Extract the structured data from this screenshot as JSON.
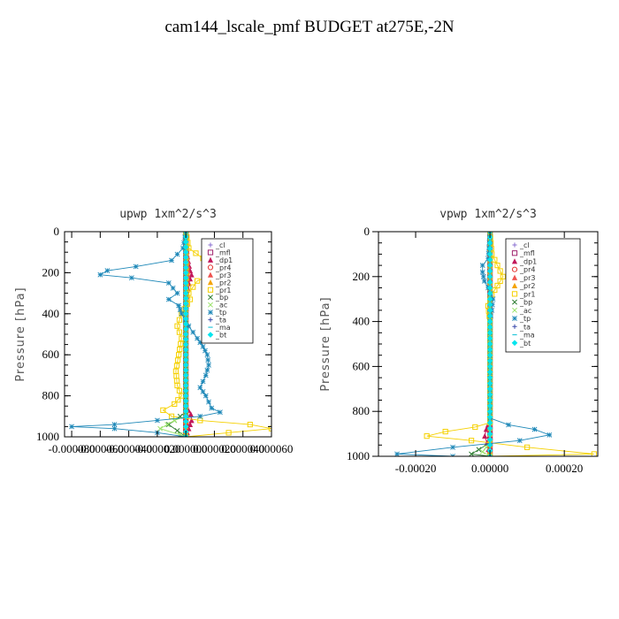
{
  "figure_title": "cam144_lscale_pmf  BUDGET at275E,-2N",
  "chart_data": [
    {
      "type": "line",
      "title": "upwp   1xm^2/s^3",
      "ylabel": "Pressure [hPa]",
      "ylim": [
        1000,
        0
      ],
      "y_ticks": [
        0,
        200,
        400,
        600,
        800,
        1000
      ],
      "xlim": [
        -8.5e-05,
        6e-05
      ],
      "x_ticks": [
        -8e-05,
        -6e-05,
        -4e-05,
        -2e-05,
        0.0,
        2e-05,
        4e-05,
        6e-05
      ],
      "x_tick_labels": [
        "-0.000080",
        "-0.000060",
        "-0.000040",
        "-0.000020",
        "0.000000",
        "0.000020",
        "0.000040",
        "0.000060"
      ],
      "grid": false,
      "legend_position": "top-right",
      "series": [
        {
          "name": "_cl",
          "color": "#8a6fd1",
          "marker": "+",
          "points": [
            [
              0,
              0
            ],
            [
              0,
              1000
            ]
          ]
        },
        {
          "name": "_mfl",
          "color": "#a0246e",
          "marker": "square",
          "points": [
            [
              0,
              0
            ],
            [
              0,
              1000
            ]
          ]
        },
        {
          "name": "_dp1",
          "color": "#c2185b",
          "marker": "triangle",
          "points": [
            [
              0,
              0
            ],
            [
              5e-07,
              100
            ],
            [
              3e-06,
              190
            ],
            [
              4e-06,
              210
            ],
            [
              3e-06,
              230
            ],
            [
              5e-07,
              300
            ],
            [
              0,
              500
            ],
            [
              0,
              850
            ],
            [
              3.5e-06,
              890
            ],
            [
              4e-06,
              920
            ],
            [
              2e-06,
              960
            ],
            [
              0,
              1000
            ]
          ]
        },
        {
          "name": "_pr4",
          "color": "#e53935",
          "marker": "circle",
          "points": [
            [
              0,
              0
            ],
            [
              1e-06,
              200
            ],
            [
              0,
              400
            ],
            [
              0,
              1000
            ]
          ]
        },
        {
          "name": "_pr3",
          "color": "#ef5350",
          "marker": "triangle",
          "points": [
            [
              0,
              0
            ],
            [
              1.5e-06,
              190
            ],
            [
              1e-06,
              230
            ],
            [
              0,
              300
            ],
            [
              0,
              1000
            ]
          ]
        },
        {
          "name": "_pr2",
          "color": "#f4a300",
          "marker": "triangle",
          "points": [
            [
              0,
              0
            ],
            [
              1e-06,
              200
            ],
            [
              0,
              400
            ],
            [
              0,
              1000
            ]
          ]
        },
        {
          "name": "_pr1",
          "color": "#f5d000",
          "marker": "square",
          "points": [
            [
              0,
              0
            ],
            [
              2e-06,
              80
            ],
            [
              1.2e-05,
              130
            ],
            [
              2e-05,
              190
            ],
            [
              1.8e-05,
              210
            ],
            [
              8e-06,
              240
            ],
            [
              2e-06,
              300
            ],
            [
              3e-06,
              330
            ],
            [
              -3e-06,
              400
            ],
            [
              -6e-06,
              460
            ],
            [
              -3e-06,
              520
            ],
            [
              -5e-06,
              600
            ],
            [
              -7e-06,
              680
            ],
            [
              -6e-06,
              750
            ],
            [
              -3e-06,
              800
            ],
            [
              -8e-06,
              840
            ],
            [
              -1.6e-05,
              870
            ],
            [
              -1e-05,
              900
            ],
            [
              1e-05,
              920
            ],
            [
              4.5e-05,
              940
            ],
            [
              6e-05,
              960
            ],
            [
              3e-05,
              980
            ],
            [
              0,
              1000
            ]
          ]
        },
        {
          "name": "_bp",
          "color": "#2e7d32",
          "marker": "x",
          "points": [
            [
              0,
              0
            ],
            [
              0,
              880
            ],
            [
              -4e-06,
              900
            ],
            [
              -1.2e-05,
              940
            ],
            [
              -6e-06,
              970
            ],
            [
              0,
              1000
            ]
          ]
        },
        {
          "name": "_ac",
          "color": "#9be36b",
          "marker": "x",
          "points": [
            [
              0,
              0
            ],
            [
              0,
              900
            ],
            [
              -8e-06,
              920
            ],
            [
              -1.8e-05,
              960
            ],
            [
              -4e-06,
              990
            ],
            [
              0,
              1000
            ]
          ]
        },
        {
          "name": "_tp",
          "color": "#1e88b8",
          "marker": "*",
          "points": [
            [
              0,
              0
            ],
            [
              -2e-06,
              80
            ],
            [
              -1e-05,
              140
            ],
            [
              -3.5e-05,
              170
            ],
            [
              -5.5e-05,
              190
            ],
            [
              -6e-05,
              210
            ],
            [
              -3.8e-05,
              225
            ],
            [
              -1.2e-05,
              250
            ],
            [
              -6e-06,
              300
            ],
            [
              -1.2e-05,
              330
            ],
            [
              -5e-06,
              360
            ],
            [
              -3e-06,
              400
            ],
            [
              2e-06,
              460
            ],
            [
              8e-06,
              520
            ],
            [
              1.2e-05,
              560
            ],
            [
              1.5e-05,
              600
            ],
            [
              1.6e-05,
              650
            ],
            [
              1.4e-05,
              700
            ],
            [
              1e-05,
              760
            ],
            [
              1.4e-05,
              800
            ],
            [
              1.8e-05,
              860
            ],
            [
              2.4e-05,
              880
            ],
            [
              1e-05,
              900
            ],
            [
              -2e-05,
              920
            ],
            [
              -5e-05,
              940
            ],
            [
              -8e-05,
              950
            ],
            [
              -5e-05,
              960
            ],
            [
              -2e-05,
              980
            ],
            [
              0,
              1000
            ]
          ]
        },
        {
          "name": "_ta",
          "color": "#3949ab",
          "marker": "+",
          "points": [
            [
              0,
              0
            ],
            [
              0,
              1000
            ]
          ]
        },
        {
          "name": "_ma",
          "color": "#26c6da",
          "marker": "dash",
          "points": [
            [
              0,
              0
            ],
            [
              0,
              1000
            ]
          ]
        },
        {
          "name": "_bt",
          "color": "#00e5ee",
          "marker": "diamond",
          "points": [
            [
              0,
              0
            ],
            [
              0,
              1000
            ]
          ]
        }
      ]
    },
    {
      "type": "line",
      "title": "vpwp   1xm^2/s^3",
      "ylabel": "Pressure [hPa]",
      "ylim": [
        1000,
        0
      ],
      "y_ticks": [
        0,
        200,
        400,
        600,
        800,
        1000
      ],
      "xlim": [
        -0.0003,
        0.00029
      ],
      "x_ticks": [
        -0.0002,
        0.0,
        0.0002
      ],
      "x_tick_labels": [
        "-0.00020",
        "0.00000",
        "0.00020"
      ],
      "grid": false,
      "legend_position": "top-right",
      "series": [
        {
          "name": "_cl",
          "color": "#8a6fd1",
          "marker": "+",
          "points": [
            [
              0,
              0
            ],
            [
              0,
              1000
            ]
          ]
        },
        {
          "name": "_mfl",
          "color": "#a0246e",
          "marker": "square",
          "points": [
            [
              0,
              0
            ],
            [
              0,
              1000
            ]
          ]
        },
        {
          "name": "_dp1",
          "color": "#c2185b",
          "marker": "triangle",
          "points": [
            [
              0,
              0
            ],
            [
              0,
              840
            ],
            [
              -1e-05,
              880
            ],
            [
              -1.4e-05,
              910
            ],
            [
              -8e-06,
              940
            ],
            [
              0,
              1000
            ]
          ]
        },
        {
          "name": "_pr4",
          "color": "#e53935",
          "marker": "circle",
          "points": [
            [
              0,
              0
            ],
            [
              0,
              1000
            ]
          ]
        },
        {
          "name": "_pr3",
          "color": "#ef5350",
          "marker": "triangle",
          "points": [
            [
              0,
              0
            ],
            [
              0,
              1000
            ]
          ]
        },
        {
          "name": "_pr2",
          "color": "#f4a300",
          "marker": "triangle",
          "points": [
            [
              0,
              0
            ],
            [
              0,
              1000
            ]
          ]
        },
        {
          "name": "_pr1",
          "color": "#f5d000",
          "marker": "square",
          "points": [
            [
              0,
              0
            ],
            [
              5e-06,
              100
            ],
            [
              2e-05,
              150
            ],
            [
              3.5e-05,
              200
            ],
            [
              2e-05,
              240
            ],
            [
              5e-06,
              280
            ],
            [
              -5e-06,
              330
            ],
            [
              0,
              400
            ],
            [
              0,
              850
            ],
            [
              -4e-05,
              870
            ],
            [
              -0.00012,
              890
            ],
            [
              -0.00017,
              910
            ],
            [
              -5e-05,
              930
            ],
            [
              0.0001,
              960
            ],
            [
              0.00028,
              990
            ],
            [
              0,
              1000
            ]
          ]
        },
        {
          "name": "_bp",
          "color": "#2e7d32",
          "marker": "x",
          "points": [
            [
              0,
              0
            ],
            [
              0,
              940
            ],
            [
              -3e-05,
              970
            ],
            [
              -5e-05,
              990
            ],
            [
              0,
              1000
            ]
          ]
        },
        {
          "name": "_ac",
          "color": "#9be36b",
          "marker": "x",
          "points": [
            [
              0,
              0
            ],
            [
              0,
              940
            ],
            [
              -2e-05,
              980
            ],
            [
              0,
              1000
            ]
          ]
        },
        {
          "name": "_tp",
          "color": "#1e88b8",
          "marker": "*",
          "points": [
            [
              0,
              0
            ],
            [
              -5e-06,
              120
            ],
            [
              -2e-05,
              150
            ],
            [
              -2e-05,
              180
            ],
            [
              -1.5e-05,
              220
            ],
            [
              -5e-06,
              250
            ],
            [
              8e-06,
              300
            ],
            [
              5e-06,
              350
            ],
            [
              0,
              400
            ],
            [
              0,
              830
            ],
            [
              5e-05,
              860
            ],
            [
              0.00012,
              880
            ],
            [
              0.00016,
              905
            ],
            [
              8e-05,
              930
            ],
            [
              -0.0001,
              960
            ],
            [
              -0.00025,
              990
            ],
            [
              -0.0001,
              1000
            ]
          ]
        },
        {
          "name": "_ta",
          "color": "#3949ab",
          "marker": "+",
          "points": [
            [
              0,
              0
            ],
            [
              0,
              1000
            ]
          ]
        },
        {
          "name": "_ma",
          "color": "#26c6da",
          "marker": "dash",
          "points": [
            [
              0,
              0
            ],
            [
              0,
              1000
            ]
          ]
        },
        {
          "name": "_bt",
          "color": "#00e5ee",
          "marker": "diamond",
          "points": [
            [
              0,
              0
            ],
            [
              0,
              1000
            ]
          ]
        }
      ]
    }
  ]
}
